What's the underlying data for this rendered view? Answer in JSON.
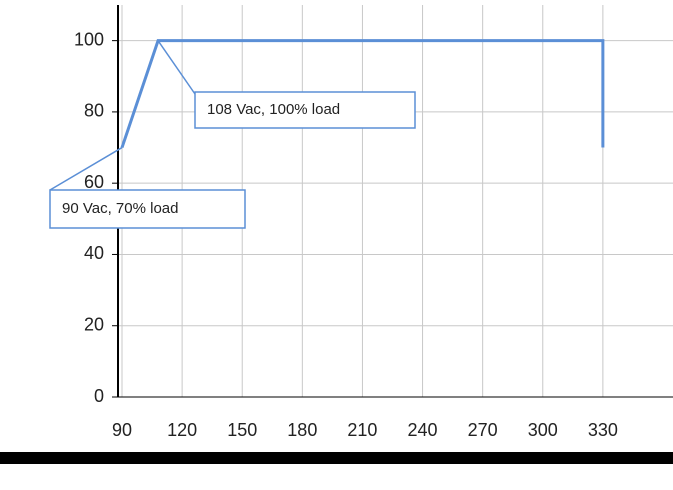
{
  "chart_data": {
    "type": "line",
    "x": [
      90,
      108,
      330,
      330
    ],
    "series": [
      {
        "color": "#5b8fd6",
        "values": [
          70,
          100,
          100,
          70
        ]
      }
    ],
    "xlim": [
      88,
      365
    ],
    "ylim": [
      0,
      110
    ],
    "xticks": [
      90,
      120,
      150,
      180,
      210,
      240,
      270,
      300,
      330
    ],
    "yticks": [
      0,
      20,
      40,
      60,
      80,
      100
    ],
    "grid": true,
    "annotations": [
      {
        "text": "108 Vac, 100% load",
        "x": 108,
        "y": 100
      },
      {
        "text": "90 Vac, 70% load",
        "x": 90,
        "y": 70
      }
    ]
  }
}
